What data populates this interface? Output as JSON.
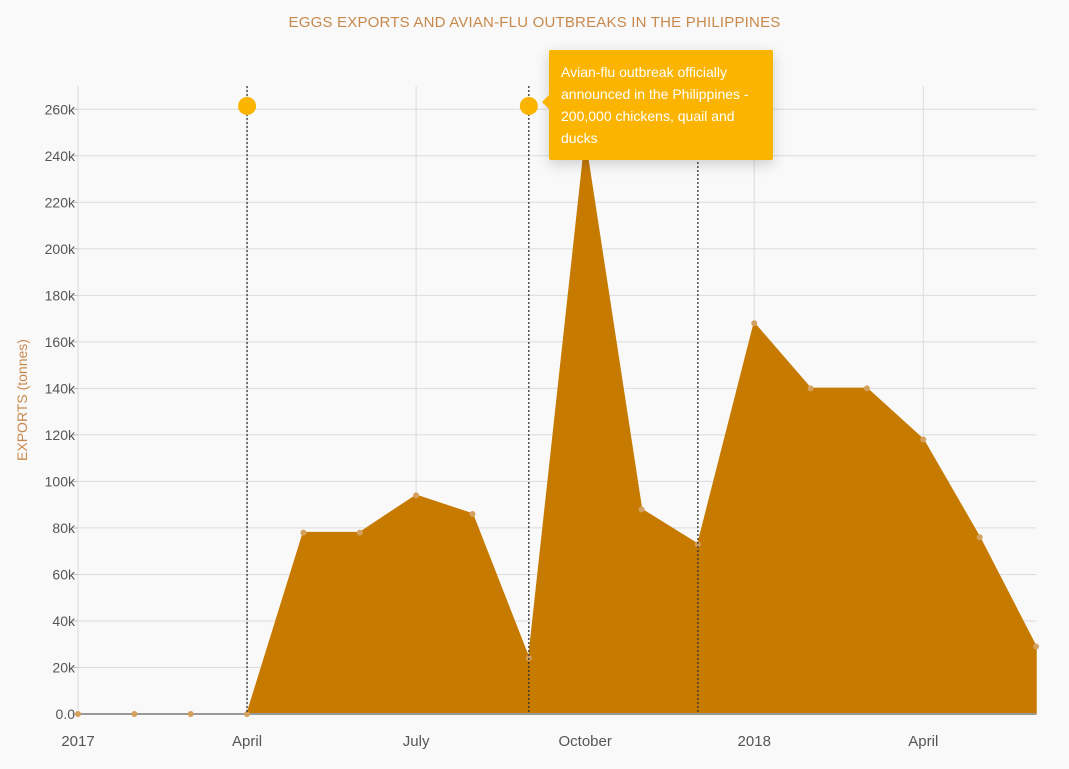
{
  "colors": {
    "title": "#c8894d",
    "area": "#c77a00",
    "point": "#d4a05e",
    "grid": "#dcdcdc",
    "axis_text": "#555555",
    "marker": "#fbb400",
    "tooltip_bg": "#fbb400",
    "tooltip_text": "#ffffff"
  },
  "chart_data": {
    "type": "area",
    "title": "EGGS EXPORTS AND AVIAN-FLU OUTBREAKS IN THE PHILIPPINES",
    "ylabel": "EXPORTS (tonnes)",
    "xlabel": "",
    "x": [
      "2017-01",
      "2017-02",
      "2017-03",
      "2017-04",
      "2017-05",
      "2017-06",
      "2017-07",
      "2017-08",
      "2017-09",
      "2017-10",
      "2017-11",
      "2017-12",
      "2018-01",
      "2018-02",
      "2018-03",
      "2018-04",
      "2018-05",
      "2018-06"
    ],
    "values": [
      0,
      0,
      0,
      0,
      78000,
      78000,
      94000,
      86000,
      24000,
      246000,
      88000,
      73000,
      168000,
      140000,
      140000,
      118000,
      76000,
      29000
    ],
    "ylim": [
      0,
      270000
    ],
    "y_ticks": [
      "0.0",
      "20k",
      "40k",
      "60k",
      "80k",
      "100k",
      "120k",
      "140k",
      "160k",
      "180k",
      "200k",
      "220k",
      "240k",
      "260k"
    ],
    "x_ticks": [
      {
        "x": "2017-01",
        "label": "2017"
      },
      {
        "x": "2017-04",
        "label": "April"
      },
      {
        "x": "2017-07",
        "label": "July"
      },
      {
        "x": "2017-10",
        "label": "October"
      },
      {
        "x": "2018-01",
        "label": "2018"
      },
      {
        "x": "2018-04",
        "label": "April"
      }
    ],
    "events": [
      "2017-04",
      "2017-09",
      "2017-12"
    ],
    "event_markers": [
      "2017-04",
      "2017-09"
    ],
    "grid": true,
    "legend": "none",
    "annotation": {
      "x": "2017-09",
      "text": "Avian-flu outbreak officially announced in the Philippines - 200,000 chickens, quail and ducks"
    }
  }
}
